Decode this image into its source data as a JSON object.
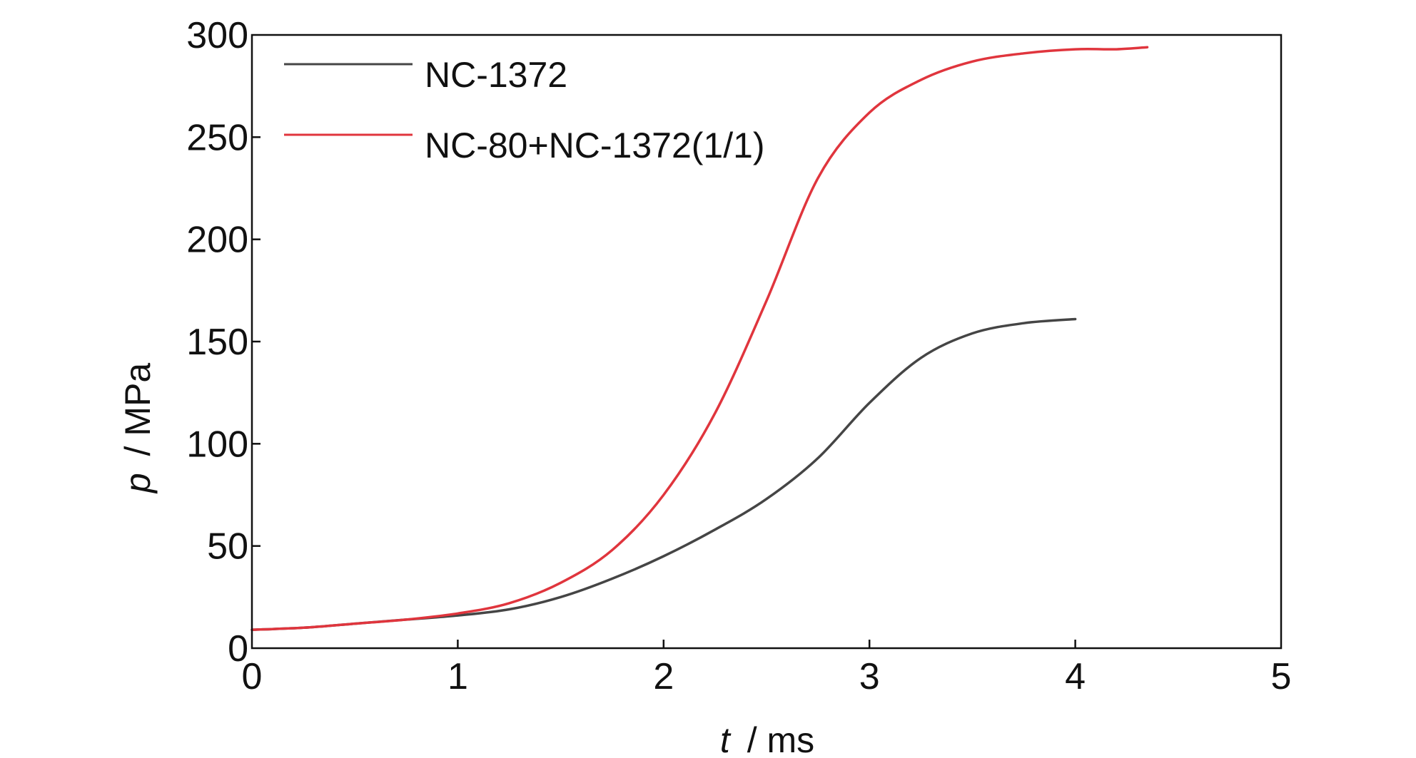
{
  "chart_data": {
    "type": "line",
    "title": "",
    "xlabel_var": "t",
    "xlabel_unit": "/ ms",
    "ylabel_var": "p",
    "ylabel_unit": "/ MPa",
    "xlim": [
      0,
      5
    ],
    "ylim": [
      0,
      300
    ],
    "xticks": [
      0,
      1,
      2,
      3,
      4,
      5
    ],
    "yticks": [
      0,
      50,
      100,
      150,
      200,
      250,
      300
    ],
    "grid": false,
    "legend_position": "top-left",
    "series": [
      {
        "name": "NC-1372",
        "color": "#454545",
        "x": [
          0,
          0.25,
          0.5,
          0.75,
          1.0,
          1.25,
          1.5,
          1.75,
          2.0,
          2.25,
          2.5,
          2.75,
          3.0,
          3.25,
          3.5,
          3.75,
          4.0
        ],
        "y": [
          9,
          10,
          12,
          14,
          16,
          19,
          25,
          34,
          45,
          58,
          73,
          93,
          120,
          142,
          154,
          159,
          161
        ]
      },
      {
        "name": "NC-80+NC-1372(1/1)",
        "color": "#e0353d",
        "x": [
          0,
          0.25,
          0.5,
          0.75,
          1.0,
          1.25,
          1.5,
          1.75,
          2.0,
          2.25,
          2.5,
          2.75,
          3.0,
          3.25,
          3.5,
          3.75,
          4.0,
          4.2,
          4.35
        ],
        "y": [
          9,
          10,
          12,
          14,
          17,
          22,
          32,
          48,
          75,
          115,
          170,
          230,
          262,
          278,
          287,
          291,
          293,
          293,
          294
        ]
      }
    ]
  }
}
